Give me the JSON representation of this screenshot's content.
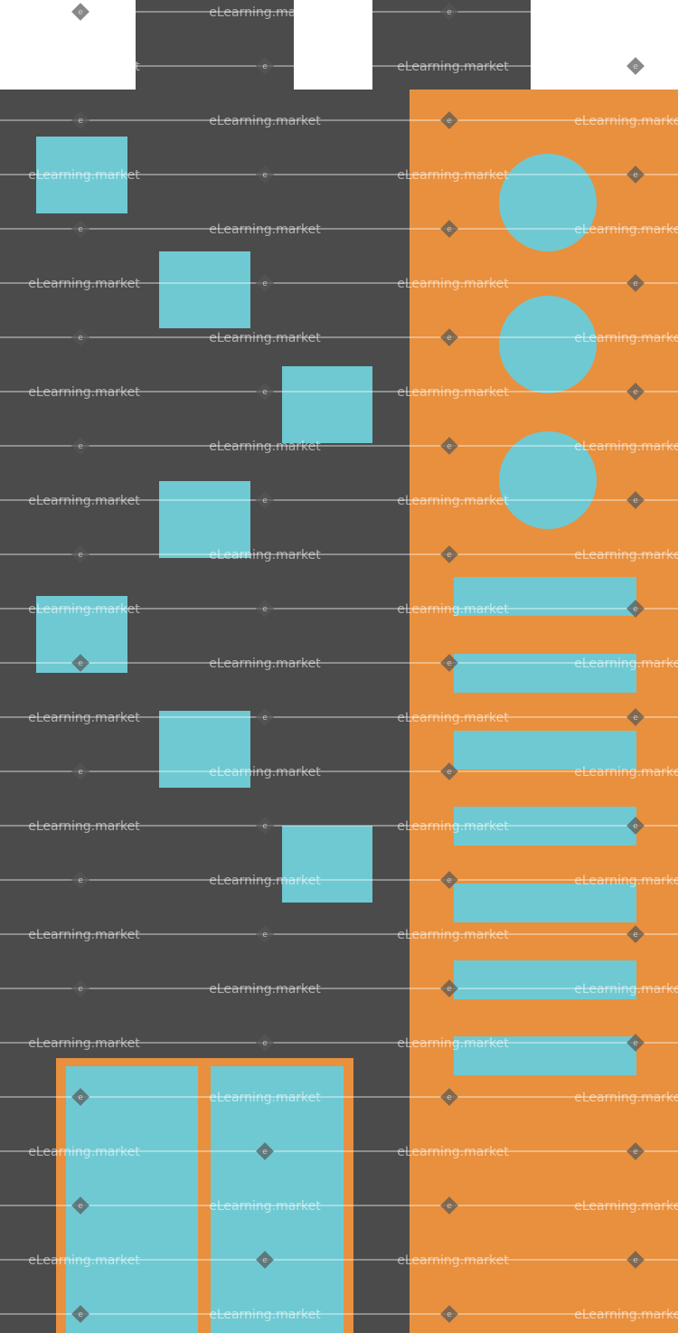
{
  "colors": {
    "background": "#4b4b4b",
    "white": "#ffffff",
    "orange": "#e8903e",
    "cyan": "#6fc9d2"
  },
  "watermark": {
    "text": "eLearning.market",
    "mark_letter": "e"
  }
}
